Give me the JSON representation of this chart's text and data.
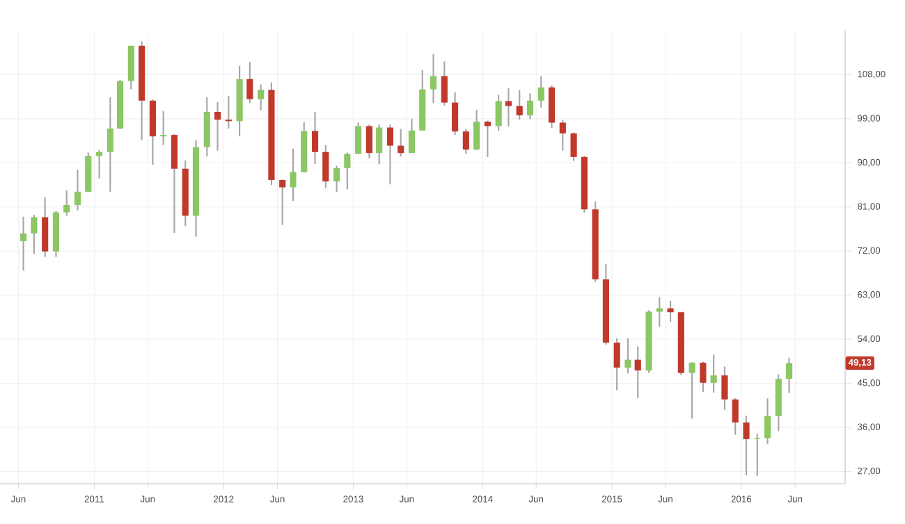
{
  "chart_data": {
    "type": "candlestick",
    "x": [
      "2010-06-15",
      "2010-07-15",
      "2010-08-15",
      "2010-09-15",
      "2010-10-15",
      "2010-11-15",
      "2010-12-15",
      "2011-01-15",
      "2011-02-15",
      "2011-03-15",
      "2011-04-15",
      "2011-05-15",
      "2011-06-15",
      "2011-07-15",
      "2011-08-15",
      "2011-09-15",
      "2011-10-15",
      "2011-11-15",
      "2011-12-15",
      "2012-01-15",
      "2012-02-15",
      "2012-03-15",
      "2012-04-15",
      "2012-05-15",
      "2012-06-15",
      "2012-07-15",
      "2012-08-15",
      "2012-09-15",
      "2012-10-15",
      "2012-11-15",
      "2012-12-15",
      "2013-01-15",
      "2013-02-15",
      "2013-03-15",
      "2013-04-15",
      "2013-05-15",
      "2013-06-15",
      "2013-07-15",
      "2013-08-15",
      "2013-09-15",
      "2013-10-15",
      "2013-11-15",
      "2013-12-15",
      "2014-01-15",
      "2014-02-15",
      "2014-03-15",
      "2014-04-15",
      "2014-05-15",
      "2014-06-15",
      "2014-07-15",
      "2014-08-15",
      "2014-09-15",
      "2014-10-15",
      "2014-11-15",
      "2014-12-15",
      "2015-01-15",
      "2015-02-15",
      "2015-03-15",
      "2015-04-15",
      "2015-05-15",
      "2015-06-15",
      "2015-07-15",
      "2015-08-15",
      "2015-09-15",
      "2015-10-15",
      "2015-11-15",
      "2015-12-15",
      "2016-01-15",
      "2016-02-15",
      "2016-03-15",
      "2016-04-15",
      "2016-05-15"
    ],
    "ohlc": [
      [
        74,
        79,
        68,
        75.6
      ],
      [
        75.6,
        79.4,
        71.4,
        78.9
      ],
      [
        78.9,
        83,
        70.8,
        71.9
      ],
      [
        71.9,
        80.2,
        70.8,
        79.9
      ],
      [
        79.9,
        84.4,
        79.2,
        81.4
      ],
      [
        81.4,
        88.6,
        80.3,
        84.1
      ],
      [
        84.1,
        92.1,
        84,
        91.4
      ],
      [
        91.4,
        92.6,
        86.8,
        92.2
      ],
      [
        92.2,
        103.4,
        84.1,
        97
      ],
      [
        97,
        106.9,
        96.9,
        106.7
      ],
      [
        106.7,
        113.9,
        105,
        113.9
      ],
      [
        113.9,
        114.8,
        94.6,
        102.7
      ],
      [
        102.7,
        102.9,
        89.6,
        95.4
      ],
      [
        95.4,
        100.6,
        93.6,
        95.7
      ],
      [
        95.7,
        95.9,
        75.7,
        88.8
      ],
      [
        88.8,
        90.5,
        77.1,
        79.2
      ],
      [
        79.2,
        94.6,
        74.9,
        93.2
      ],
      [
        93.2,
        103.4,
        91.3,
        100.4
      ],
      [
        100.4,
        102.4,
        92.5,
        98.8
      ],
      [
        98.8,
        103.7,
        97,
        98.5
      ],
      [
        98.5,
        109.8,
        95.4,
        107.1
      ],
      [
        107.1,
        110.6,
        102.2,
        103
      ],
      [
        103,
        106,
        100.7,
        104.9
      ],
      [
        104.9,
        106.4,
        85.5,
        86.5
      ],
      [
        86.5,
        86.6,
        77.3,
        85
      ],
      [
        85,
        92.9,
        82.2,
        88.1
      ],
      [
        88.1,
        98.3,
        88,
        96.5
      ],
      [
        96.5,
        100.4,
        89.8,
        92.2
      ],
      [
        92.2,
        93.6,
        84.8,
        86.2
      ],
      [
        86.2,
        89.4,
        84.1,
        88.9
      ],
      [
        88.9,
        92.1,
        84.6,
        91.8
      ],
      [
        91.8,
        98.2,
        91.8,
        97.5
      ],
      [
        97.5,
        97.8,
        90.9,
        92
      ],
      [
        92,
        97.8,
        89.7,
        97.2
      ],
      [
        97.2,
        97.8,
        85.6,
        93.5
      ],
      [
        93.5,
        96.9,
        91.3,
        92
      ],
      [
        92,
        99,
        92,
        96.6
      ],
      [
        96.6,
        108.9,
        96.5,
        105
      ],
      [
        105,
        112.2,
        102.2,
        107.7
      ],
      [
        107.7,
        110.7,
        101.7,
        102.3
      ],
      [
        102.3,
        104.4,
        95.7,
        96.4
      ],
      [
        96.4,
        96.9,
        91.8,
        92.7
      ],
      [
        92.7,
        100.8,
        92.6,
        98.4
      ],
      [
        98.4,
        98.6,
        91.2,
        97.5
      ],
      [
        97.5,
        103.9,
        96.5,
        102.6
      ],
      [
        102.6,
        105.2,
        97.4,
        101.6
      ],
      [
        101.6,
        104.9,
        98.8,
        99.7
      ],
      [
        99.7,
        104.2,
        98.9,
        102.7
      ],
      [
        102.7,
        107.7,
        101.3,
        105.4
      ],
      [
        105.4,
        105.8,
        97.1,
        98.2
      ],
      [
        98.2,
        98.7,
        92.5,
        96
      ],
      [
        96,
        96.2,
        90.4,
        91.2
      ],
      [
        91.2,
        91.4,
        79.8,
        80.5
      ],
      [
        80.5,
        82.1,
        65.7,
        66.2
      ],
      [
        66.2,
        69.3,
        52.9,
        53.3
      ],
      [
        53.3,
        54.2,
        43.6,
        48.2
      ],
      [
        48.2,
        54.2,
        47,
        49.8
      ],
      [
        49.8,
        52.5,
        42,
        47.6
      ],
      [
        47.6,
        59.9,
        47.1,
        59.6
      ],
      [
        59.6,
        62.6,
        56.5,
        60.3
      ],
      [
        60.3,
        61.8,
        57.5,
        59.5
      ],
      [
        59.5,
        59.6,
        46.7,
        47.1
      ],
      [
        47.1,
        49.3,
        37.8,
        49.2
      ],
      [
        49.2,
        49.4,
        43.2,
        45.1
      ],
      [
        45.1,
        50.9,
        43.1,
        46.6
      ],
      [
        46.6,
        48.4,
        39.6,
        41.7
      ],
      [
        41.7,
        42,
        34.5,
        37
      ],
      [
        37,
        38.4,
        26.2,
        33.6
      ],
      [
        33.6,
        34.7,
        26.1,
        33.8
      ],
      [
        33.8,
        41.9,
        32.6,
        38.3
      ],
      [
        38.3,
        46.8,
        35.2,
        45.9
      ],
      [
        45.9,
        50.2,
        43,
        49.13
      ]
    ],
    "xlim": [
      "2010-04-10",
      "2016-10-20"
    ],
    "xticks": [
      {
        "value": "2010-06-01",
        "label": "Jun"
      },
      "2011",
      {
        "value": "2011-06-01",
        "label": "Jun"
      },
      "2012",
      {
        "value": "2012-06-01",
        "label": "Jun"
      },
      "2013",
      {
        "value": "2013-06-01",
        "label": "Jun"
      },
      "2014",
      {
        "value": "2014-06-01",
        "label": "Jun"
      },
      "2015",
      {
        "value": "2015-06-01",
        "label": "Jun"
      },
      "2016",
      {
        "value": "2016-06-01",
        "label": "Jun"
      }
    ],
    "ylim": [
      24.5,
      117
    ],
    "yticks": [
      {
        "value": 27,
        "label": "27,00"
      },
      {
        "value": 36,
        "label": "36,00"
      },
      {
        "value": 45,
        "label": "45,00"
      },
      {
        "value": 54,
        "label": "54,00"
      },
      {
        "value": 63,
        "label": "63,00"
      },
      {
        "value": 72,
        "label": "72,00"
      },
      {
        "value": 81,
        "label": "81,00"
      },
      {
        "value": 90,
        "label": "90,00"
      },
      {
        "value": 99,
        "label": "99,00"
      },
      {
        "value": 108,
        "label": "108,00"
      }
    ],
    "grid": true,
    "annotations": [
      {
        "text": "49,13",
        "y": 49.13
      }
    ]
  }
}
